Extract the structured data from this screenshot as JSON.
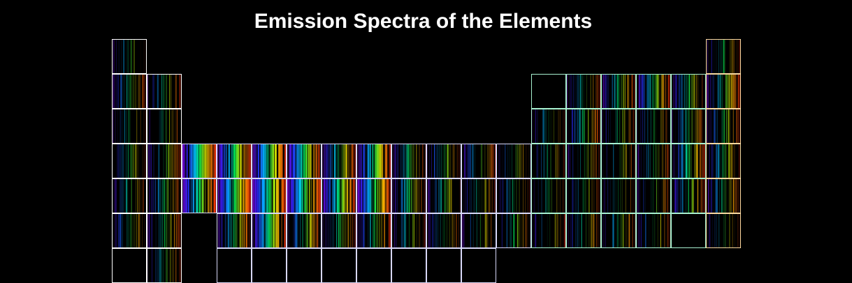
{
  "title": "Emission Spectra of the Elements",
  "colors": {
    "background": "#000000",
    "title_text": "#ffffff",
    "border_s_block": "#ffffff",
    "border_d_block": "#d8d8f8",
    "border_p_block": "#a8f0d0",
    "border_noble": "#f8d8a0"
  },
  "table": {
    "cells": [
      {
        "row": 1,
        "col": 1,
        "intensity": 0.25,
        "block": "s"
      },
      {
        "row": 1,
        "col": 18,
        "intensity": 0.35,
        "block": "noble"
      },
      {
        "row": 2,
        "col": 1,
        "intensity": 0.55,
        "block": "s"
      },
      {
        "row": 2,
        "col": 2,
        "intensity": 0.5,
        "block": "s"
      },
      {
        "row": 2,
        "col": 13,
        "intensity": 0.0,
        "block": "p"
      },
      {
        "row": 2,
        "col": 14,
        "intensity": 0.45,
        "block": "p"
      },
      {
        "row": 2,
        "col": 15,
        "intensity": 0.6,
        "block": "p"
      },
      {
        "row": 2,
        "col": 16,
        "intensity": 0.8,
        "block": "p"
      },
      {
        "row": 2,
        "col": 17,
        "intensity": 0.55,
        "block": "p"
      },
      {
        "row": 2,
        "col": 18,
        "intensity": 0.75,
        "block": "noble"
      },
      {
        "row": 3,
        "col": 1,
        "intensity": 0.25,
        "block": "s"
      },
      {
        "row": 3,
        "col": 2,
        "intensity": 0.3,
        "block": "s"
      },
      {
        "row": 3,
        "col": 13,
        "intensity": 0.3,
        "block": "p"
      },
      {
        "row": 3,
        "col": 14,
        "intensity": 0.6,
        "block": "p"
      },
      {
        "row": 3,
        "col": 15,
        "intensity": 0.35,
        "block": "p"
      },
      {
        "row": 3,
        "col": 16,
        "intensity": 0.3,
        "block": "p"
      },
      {
        "row": 3,
        "col": 17,
        "intensity": 0.5,
        "block": "p"
      },
      {
        "row": 3,
        "col": 18,
        "intensity": 0.45,
        "block": "noble"
      },
      {
        "row": 4,
        "col": 1,
        "intensity": 0.4,
        "block": "s"
      },
      {
        "row": 4,
        "col": 2,
        "intensity": 0.5,
        "block": "s"
      },
      {
        "row": 4,
        "col": 3,
        "intensity": 1.0,
        "block": "d"
      },
      {
        "row": 4,
        "col": 4,
        "intensity": 1.0,
        "block": "d"
      },
      {
        "row": 4,
        "col": 5,
        "intensity": 1.0,
        "block": "d"
      },
      {
        "row": 4,
        "col": 6,
        "intensity": 0.95,
        "block": "d"
      },
      {
        "row": 4,
        "col": 7,
        "intensity": 0.8,
        "block": "d"
      },
      {
        "row": 4,
        "col": 8,
        "intensity": 0.9,
        "block": "d"
      },
      {
        "row": 4,
        "col": 9,
        "intensity": 0.55,
        "block": "d"
      },
      {
        "row": 4,
        "col": 10,
        "intensity": 0.5,
        "block": "d"
      },
      {
        "row": 4,
        "col": 11,
        "intensity": 0.5,
        "block": "d"
      },
      {
        "row": 4,
        "col": 12,
        "intensity": 0.3,
        "block": "d"
      },
      {
        "row": 4,
        "col": 13,
        "intensity": 0.3,
        "block": "p"
      },
      {
        "row": 4,
        "col": 14,
        "intensity": 0.3,
        "block": "p"
      },
      {
        "row": 4,
        "col": 15,
        "intensity": 0.3,
        "block": "p"
      },
      {
        "row": 4,
        "col": 16,
        "intensity": 0.4,
        "block": "p"
      },
      {
        "row": 4,
        "col": 17,
        "intensity": 0.7,
        "block": "p"
      },
      {
        "row": 4,
        "col": 18,
        "intensity": 0.55,
        "block": "noble"
      },
      {
        "row": 5,
        "col": 1,
        "intensity": 0.4,
        "block": "s"
      },
      {
        "row": 5,
        "col": 2,
        "intensity": 0.6,
        "block": "s"
      },
      {
        "row": 5,
        "col": 3,
        "intensity": 0.95,
        "block": "d"
      },
      {
        "row": 5,
        "col": 4,
        "intensity": 1.0,
        "block": "d"
      },
      {
        "row": 5,
        "col": 5,
        "intensity": 1.0,
        "block": "d"
      },
      {
        "row": 5,
        "col": 6,
        "intensity": 0.95,
        "block": "d"
      },
      {
        "row": 5,
        "col": 7,
        "intensity": 0.85,
        "block": "d"
      },
      {
        "row": 5,
        "col": 8,
        "intensity": 0.95,
        "block": "d"
      },
      {
        "row": 5,
        "col": 9,
        "intensity": 0.65,
        "block": "d"
      },
      {
        "row": 5,
        "col": 10,
        "intensity": 0.45,
        "block": "d"
      },
      {
        "row": 5,
        "col": 11,
        "intensity": 0.4,
        "block": "d"
      },
      {
        "row": 5,
        "col": 12,
        "intensity": 0.3,
        "block": "d"
      },
      {
        "row": 5,
        "col": 13,
        "intensity": 0.3,
        "block": "p"
      },
      {
        "row": 5,
        "col": 14,
        "intensity": 0.35,
        "block": "p"
      },
      {
        "row": 5,
        "col": 15,
        "intensity": 0.3,
        "block": "p"
      },
      {
        "row": 5,
        "col": 16,
        "intensity": 0.3,
        "block": "p"
      },
      {
        "row": 5,
        "col": 17,
        "intensity": 0.5,
        "block": "p"
      },
      {
        "row": 5,
        "col": 18,
        "intensity": 0.55,
        "block": "noble"
      },
      {
        "row": 6,
        "col": 1,
        "intensity": 0.35,
        "block": "s"
      },
      {
        "row": 6,
        "col": 2,
        "intensity": 0.5,
        "block": "s"
      },
      {
        "row": 6,
        "col": 4,
        "intensity": 0.7,
        "block": "d"
      },
      {
        "row": 6,
        "col": 5,
        "intensity": 0.85,
        "block": "d"
      },
      {
        "row": 6,
        "col": 6,
        "intensity": 0.7,
        "block": "d"
      },
      {
        "row": 6,
        "col": 7,
        "intensity": 0.5,
        "block": "d"
      },
      {
        "row": 6,
        "col": 8,
        "intensity": 0.55,
        "block": "d"
      },
      {
        "row": 6,
        "col": 9,
        "intensity": 0.4,
        "block": "d"
      },
      {
        "row": 6,
        "col": 10,
        "intensity": 0.35,
        "block": "d"
      },
      {
        "row": 6,
        "col": 11,
        "intensity": 0.3,
        "block": "d"
      },
      {
        "row": 6,
        "col": 12,
        "intensity": 0.3,
        "block": "d"
      },
      {
        "row": 6,
        "col": 13,
        "intensity": 0.3,
        "block": "p"
      },
      {
        "row": 6,
        "col": 14,
        "intensity": 0.4,
        "block": "p"
      },
      {
        "row": 6,
        "col": 15,
        "intensity": 0.35,
        "block": "p"
      },
      {
        "row": 6,
        "col": 16,
        "intensity": 0.3,
        "block": "p"
      },
      {
        "row": 6,
        "col": 17,
        "intensity": 0.0,
        "block": "p"
      },
      {
        "row": 6,
        "col": 18,
        "intensity": 0.2,
        "block": "noble"
      },
      {
        "row": 7,
        "col": 1,
        "intensity": 0.0,
        "block": "s"
      },
      {
        "row": 7,
        "col": 2,
        "intensity": 0.35,
        "block": "s"
      },
      {
        "row": 7,
        "col": 4,
        "intensity": 0.0,
        "block": "d"
      },
      {
        "row": 7,
        "col": 5,
        "intensity": 0.0,
        "block": "d"
      },
      {
        "row": 7,
        "col": 6,
        "intensity": 0.0,
        "block": "d"
      },
      {
        "row": 7,
        "col": 7,
        "intensity": 0.0,
        "block": "d"
      },
      {
        "row": 7,
        "col": 8,
        "intensity": 0.0,
        "block": "d"
      },
      {
        "row": 7,
        "col": 9,
        "intensity": 0.0,
        "block": "d"
      },
      {
        "row": 7,
        "col": 10,
        "intensity": 0.0,
        "block": "d"
      },
      {
        "row": 7,
        "col": 11,
        "intensity": 0.0,
        "block": "d"
      }
    ]
  }
}
